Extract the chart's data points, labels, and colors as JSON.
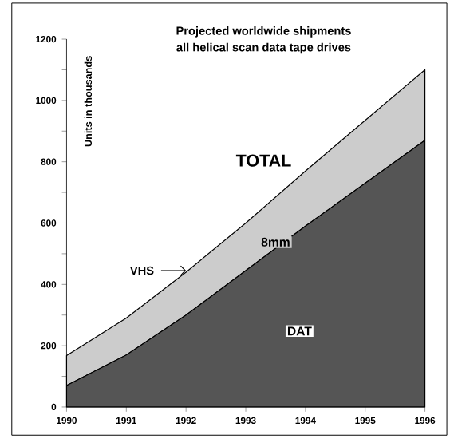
{
  "chart_data": {
    "type": "area",
    "title": "Projected worldwide shipments",
    "subtitle": "all helical scan data tape drives",
    "ylabel": "Units in thousands",
    "x": [
      1990,
      1991,
      1992,
      1993,
      1994,
      1995,
      1996
    ],
    "stacked": true,
    "series": [
      {
        "name": "DAT",
        "color": "#555555",
        "values": [
          70,
          170,
          300,
          445,
          590,
          730,
          870
        ]
      },
      {
        "name": "8mm",
        "color": "#cccccc",
        "values": [
          98,
          120,
          140,
          155,
          180,
          205,
          230
        ]
      }
    ],
    "annotations": [
      "TOTAL",
      {
        "text": "VHS",
        "x": 1992,
        "y": 445
      }
    ],
    "xlim": [
      1990,
      1996
    ],
    "ylim": [
      0,
      1200
    ],
    "xticks": [
      1990,
      1991,
      1992,
      1993,
      1994,
      1995,
      1996
    ],
    "yticks": [
      0,
      {
        "value": 100,
        "label": null
      },
      200,
      {
        "value": 300,
        "label": null
      },
      400,
      {
        "value": 500,
        "label": null
      },
      600,
      {
        "value": 700,
        "label": null
      },
      800,
      {
        "value": 900,
        "label": null
      },
      1000,
      {
        "value": 1100,
        "label": null
      },
      1200
    ]
  }
}
